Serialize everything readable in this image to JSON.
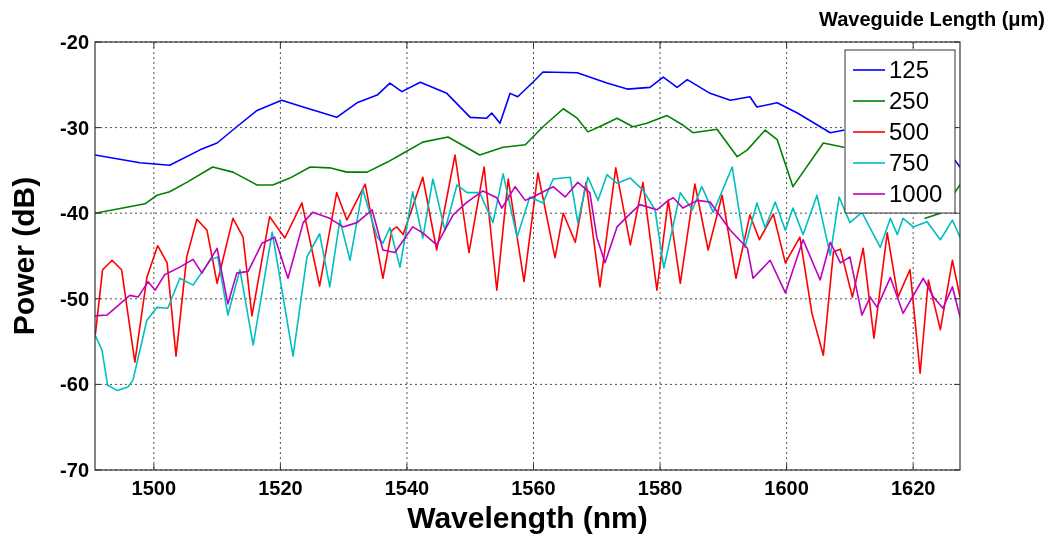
{
  "chart_data": {
    "type": "line",
    "xlabel": "Wavelength (nm)",
    "ylabel": "Power (dB)",
    "legend_title": "Waveguide Length (μm)",
    "xlim": [
      1490.7,
      1627.4
    ],
    "ylim": [
      -70,
      -20
    ],
    "xticks": [
      1500,
      1520,
      1540,
      1560,
      1580,
      1600,
      1620
    ],
    "yticks": [
      -70,
      -60,
      -50,
      -40,
      -30,
      -20
    ],
    "grid": true,
    "legend": "top right",
    "marker": "none",
    "line_style": "solid",
    "series": [
      {
        "name": "125",
        "color": "#0000ff",
        "x": [
          1490.7,
          1497.8,
          1502.5,
          1507.3,
          1510.0,
          1513.1,
          1516.3,
          1520.2,
          1523.6,
          1528.9,
          1532.1,
          1535.3,
          1537.3,
          1539.2,
          1542.1,
          1546.3,
          1550.0,
          1552.6,
          1553.4,
          1554.7,
          1556.3,
          1557.5,
          1559.9,
          1561.5,
          1566.9,
          1571.6,
          1574.8,
          1578.4,
          1580.5,
          1582.7,
          1584.3,
          1587.9,
          1591.1,
          1594.2,
          1595.3,
          1598.5,
          1601.7,
          1606.9,
          1609.0,
          1618.0,
          1626.6,
          1627.4
        ],
        "values": [
          -33.2,
          -34.1,
          -34.4,
          -32.6,
          -31.8,
          -29.9,
          -28,
          -26.8,
          -27.6,
          -28.8,
          -27.1,
          -26.2,
          -24.8,
          -25.8,
          -24.7,
          -26,
          -28.8,
          -28.9,
          -28.3,
          -29.5,
          -26,
          -26.4,
          -24.7,
          -23.5,
          -23.6,
          -24.8,
          -25.5,
          -25.3,
          -24.1,
          -25.3,
          -24.4,
          -26,
          -26.8,
          -26.4,
          -27.6,
          -27.1,
          -28.3,
          -30.6,
          -30.3,
          null,
          -33.8,
          -34.6
        ]
      },
      {
        "name": "250",
        "color": "#008000",
        "x": [
          1490.7,
          1495.1,
          1498.6,
          1500.5,
          1502.5,
          1505.2,
          1509.3,
          1512.5,
          1516.3,
          1518.8,
          1521.5,
          1524.7,
          1527.8,
          1530.5,
          1533.7,
          1537.0,
          1539.4,
          1542.5,
          1546.5,
          1551.5,
          1555.2,
          1558.7,
          1561.5,
          1564.7,
          1566.9,
          1568.6,
          1571.0,
          1573.2,
          1575.7,
          1577.9,
          1581.1,
          1583.6,
          1585.2,
          1589.0,
          1592.2,
          1593.8,
          1596.6,
          1598.5,
          1601.0,
          1605.8,
          1609.0,
          1615.0,
          1621.9,
          1624.3,
          1627.4
        ],
        "values": [
          -40,
          -39.4,
          -38.9,
          -37.9,
          -37.5,
          -36.4,
          -34.6,
          -35.2,
          -36.7,
          -36.7,
          -35.9,
          -34.6,
          -34.7,
          -35.2,
          -35.2,
          -34,
          -33,
          -31.7,
          -31.1,
          -33.2,
          -32.3,
          -32,
          -29.9,
          -27.8,
          -28.9,
          -30.5,
          -29.7,
          -28.9,
          -29.9,
          -29.5,
          -28.6,
          -29.7,
          -30.6,
          -30.2,
          -33.4,
          -32.6,
          -30.3,
          -31.4,
          -36.9,
          -31.8,
          -32.3,
          null,
          -40.6,
          -40,
          -36.7
        ]
      },
      {
        "name": "500",
        "color": "#ff0000",
        "x": [
          1490.7,
          1491.9,
          1493.4,
          1494.9,
          1497.0,
          1498.9,
          1500.6,
          1502.1,
          1503.5,
          1505.2,
          1506.8,
          1508.4,
          1510.0,
          1512.5,
          1514.1,
          1515.5,
          1518.3,
          1520.7,
          1523.4,
          1526.2,
          1528.9,
          1530.5,
          1533.4,
          1536.2,
          1537.6,
          1538.4,
          1539.4,
          1542.5,
          1544.7,
          1547.6,
          1549.8,
          1552.2,
          1554.2,
          1556.0,
          1558.5,
          1560.7,
          1563.4,
          1564.7,
          1566.6,
          1568.3,
          1570.5,
          1573.0,
          1575.3,
          1577.3,
          1579.5,
          1581.3,
          1583.2,
          1585.5,
          1587.6,
          1589.8,
          1592.0,
          1594.2,
          1595.7,
          1597.9,
          1599.8,
          1602.1,
          1604.0,
          1605.8,
          1607.4,
          1608.5,
          1610.4,
          1612.1,
          1613.8,
          1615.9,
          1617.6,
          1619.5,
          1621.1,
          1622.4,
          1624.3,
          1626.2,
          1627.4
        ],
        "values": [
          -54.5,
          -46.6,
          -45.5,
          -46.6,
          -57.4,
          -47.5,
          -43.8,
          -45.8,
          -56.7,
          -45.1,
          -40.7,
          -42,
          -48.2,
          -40.6,
          -42.8,
          -52,
          -40.4,
          -42.9,
          -38.8,
          -48.5,
          -37.6,
          -40.8,
          -36.6,
          -47.6,
          -42,
          -41.6,
          -42.5,
          -35.8,
          -44.3,
          -33.2,
          -44.6,
          -34.6,
          -49,
          -36,
          -48,
          -35.3,
          -45.2,
          -40,
          -43.4,
          -36.4,
          -48.6,
          -34.7,
          -43.7,
          -36.4,
          -49,
          -38.5,
          -48.2,
          -36.6,
          -44.3,
          -37.9,
          -47.6,
          -40.2,
          -43.1,
          -40.1,
          -45.8,
          -42.8,
          -51.7,
          -56.6,
          -44.5,
          -44.2,
          -49.8,
          -44.1,
          -54.6,
          -42.3,
          -49.8,
          -46.6,
          -58.7,
          -47.8,
          -53.6,
          -45.5,
          -49.8
        ]
      },
      {
        "name": "750",
        "color": "#00bfbf",
        "x": [
          1490.7,
          1491.8,
          1492.7,
          1494.2,
          1495.9,
          1496.7,
          1498.9,
          1500.5,
          1502.2,
          1504.1,
          1506.2,
          1508.9,
          1510.1,
          1511.7,
          1513.6,
          1515.7,
          1518.7,
          1522.0,
          1524.2,
          1526.2,
          1527.8,
          1529.4,
          1531.0,
          1533.0,
          1535.3,
          1536.2,
          1537.3,
          1538.9,
          1540.9,
          1542.5,
          1544.1,
          1546.0,
          1547.9,
          1549.5,
          1551.5,
          1553.6,
          1555.2,
          1557.4,
          1559.4,
          1561.5,
          1563.1,
          1565.8,
          1567.0,
          1568.6,
          1570.2,
          1571.6,
          1573.2,
          1575.3,
          1577.3,
          1579.2,
          1580.6,
          1583.2,
          1585.1,
          1586.6,
          1588.4,
          1591.4,
          1593.4,
          1595.3,
          1596.6,
          1598.2,
          1599.8,
          1601.0,
          1602.6,
          1604.8,
          1606.9,
          1608.3,
          1610.0,
          1611.9,
          1614.8,
          1616.4,
          1617.5,
          1618.4,
          1620.0,
          1622.2,
          1624.3,
          1626.2,
          1627.4
        ],
        "values": [
          -54.2,
          -56,
          -60.1,
          -60.7,
          -60.3,
          -59.5,
          -52.5,
          -51,
          -51.1,
          -47.6,
          -48.4,
          -45.5,
          -45.1,
          -51.9,
          -46.6,
          -55.4,
          -42.2,
          -56.7,
          -45.1,
          -42.4,
          -48.6,
          -40.8,
          -45.5,
          -37.2,
          -42.8,
          -43.5,
          -41.7,
          -46.3,
          -37.5,
          -42.9,
          -36,
          -42,
          -36.7,
          -37.6,
          -37.6,
          -41.1,
          -35.4,
          -42.8,
          -38.1,
          -38.8,
          -36,
          -35.8,
          -41.1,
          -35.8,
          -38.5,
          -35.5,
          -36.5,
          -35.9,
          -37.3,
          -39.6,
          -46.4,
          -37.6,
          -39.6,
          -36.9,
          -39.9,
          -34.6,
          -44,
          -38.8,
          -41.7,
          -38.7,
          -42,
          -39.4,
          -42.5,
          -37.9,
          -44.9,
          -38.1,
          -41.1,
          -39.9,
          -44,
          -40.6,
          -42.5,
          -40.6,
          -41.6,
          -41,
          -43.1,
          -40.8,
          -42.8
        ]
      },
      {
        "name": "1000",
        "color": "#bf00bf",
        "x": [
          1490.7,
          1492.6,
          1496.2,
          1497.5,
          1499.1,
          1500.2,
          1501.7,
          1504.1,
          1506.2,
          1507.6,
          1510.0,
          1511.7,
          1513.1,
          1514.9,
          1517.1,
          1519.1,
          1521.2,
          1523.6,
          1525.1,
          1527.8,
          1529.9,
          1532.1,
          1534.5,
          1536.2,
          1538.1,
          1540.9,
          1542.5,
          1544.7,
          1547.3,
          1549.5,
          1552.0,
          1554.2,
          1555.0,
          1557.1,
          1558.7,
          1559.9,
          1563.1,
          1565.0,
          1567.0,
          1568.9,
          1570.0,
          1571.3,
          1573.2,
          1574.8,
          1576.8,
          1579.5,
          1581.3,
          1582.1,
          1583.6,
          1585.9,
          1587.9,
          1591.1,
          1593.8,
          1594.7,
          1597.4,
          1599.8,
          1602.6,
          1605.3,
          1606.9,
          1608.5,
          1610.0,
          1611.9,
          1613.2,
          1614.3,
          1616.4,
          1618.4,
          1621.6,
          1623.2,
          1624.7,
          1626.2,
          1627.4
        ],
        "values": [
          -52,
          -51.9,
          -49.6,
          -49.8,
          -48,
          -49,
          -47.2,
          -46.3,
          -45.4,
          -47,
          -44.1,
          -50.6,
          -47,
          -46.8,
          -43.5,
          -42.8,
          -47.6,
          -41.1,
          -39.9,
          -40.6,
          -41.6,
          -41.1,
          -39.6,
          -44.3,
          -44.6,
          -41.6,
          -42.3,
          -43.7,
          -40.2,
          -38.7,
          -37.4,
          -38.2,
          -39.4,
          -36.9,
          -38.5,
          -38.1,
          -36.9,
          -38.1,
          -36.4,
          -37.6,
          -42.8,
          -45.8,
          -41.6,
          -40.4,
          -39,
          -39.6,
          -38.5,
          -38.2,
          -39.4,
          -38.5,
          -38.7,
          -42,
          -44.1,
          -47.6,
          -45.5,
          -49.3,
          -43.1,
          -47.8,
          -43.4,
          -45.8,
          -45.1,
          -51.9,
          -49.8,
          -51,
          -47.5,
          -51.7,
          -47.6,
          -49.8,
          -51.1,
          -48.6,
          -52.1
        ]
      }
    ]
  }
}
